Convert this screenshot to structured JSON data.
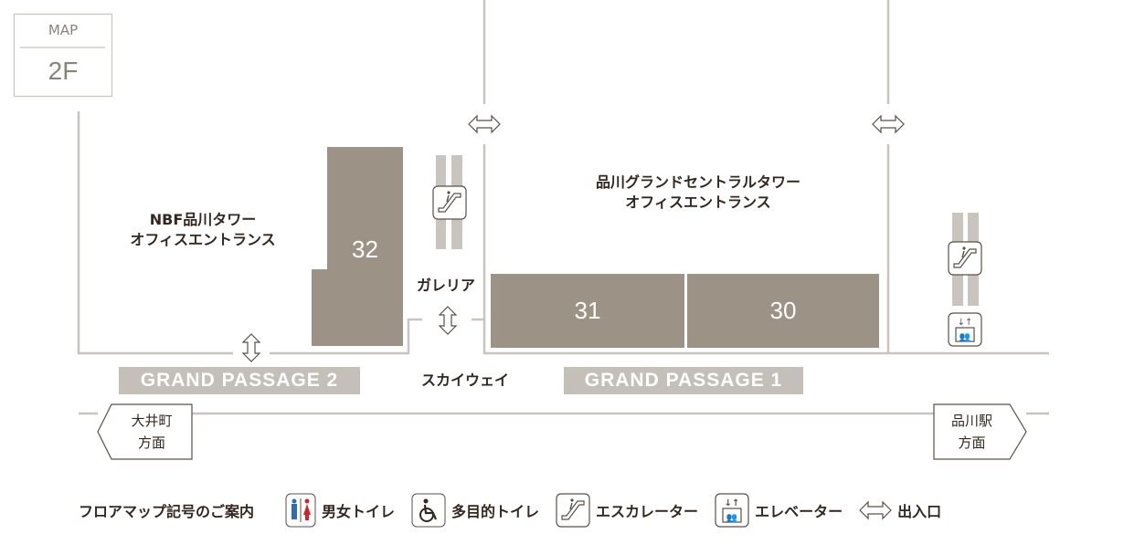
{
  "floor_badge": {
    "label": "MAP",
    "floor": "2F"
  },
  "buildings": {
    "nbf": [
      "NBF品川タワー",
      "オフィスエントランス"
    ],
    "grand_central": [
      "品川グランドセントラルタワー",
      "オフィスエントランス"
    ]
  },
  "areas": {
    "galleria": "ガレリア",
    "skyway": "スカイウェイ"
  },
  "units": [
    "32",
    "31",
    "30"
  ],
  "passages": {
    "gp2": "GRAND PASSAGE 2",
    "gp1": "GRAND PASSAGE 1"
  },
  "directions": {
    "left": [
      "大井町",
      "方面"
    ],
    "right": [
      "品川駅",
      "方面"
    ]
  },
  "legend": {
    "title": "フロアマップ記号のご案内",
    "items": [
      {
        "icon": "restroom-icon",
        "label": "男女トイレ"
      },
      {
        "icon": "accessible-restroom-icon",
        "label": "多目的トイレ"
      },
      {
        "icon": "escalator-icon",
        "label": "エスカレーター"
      },
      {
        "icon": "elevator-icon",
        "label": "エレベーター"
      },
      {
        "icon": "entrance-icon",
        "label": "出入口"
      }
    ]
  },
  "colors": {
    "unit": "#9c9286",
    "wall": "#c9c4bd",
    "passage": "#c4bfb8",
    "text": "#33271f",
    "male": "#2f6db5",
    "female": "#d2232a"
  }
}
